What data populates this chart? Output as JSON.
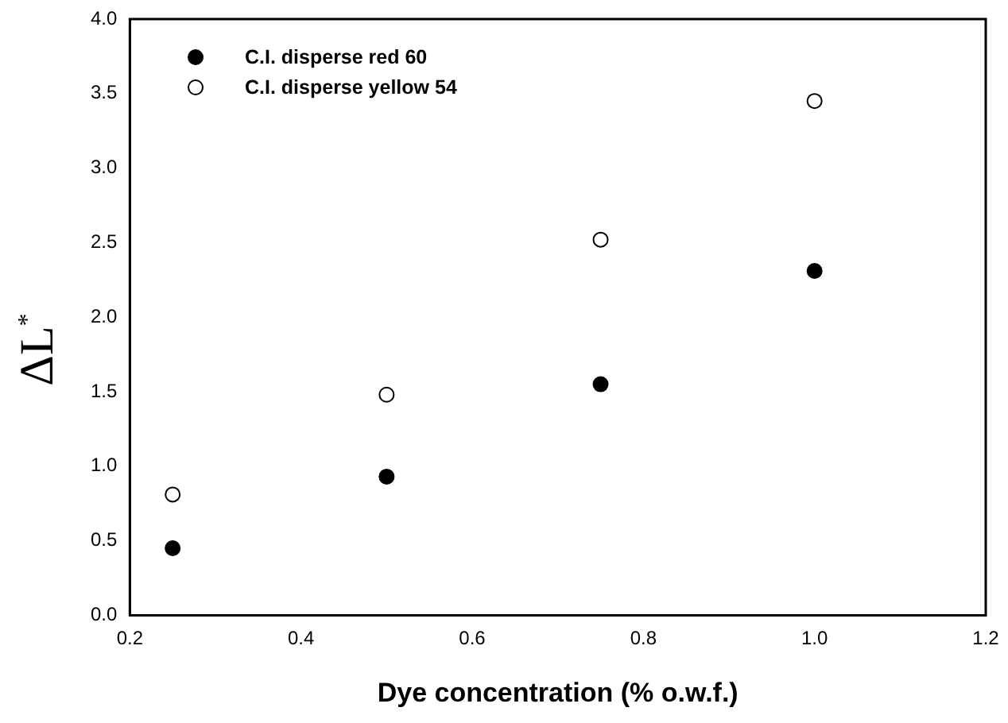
{
  "chart_data": {
    "type": "scatter",
    "xlabel": "Dye concentration (% o.w.f.)",
    "ylabel": "ΔL$^{*}$",
    "x": [
      0.25,
      0.5,
      0.75,
      1.0
    ],
    "series": [
      {
        "name": "C.I. disperse red 60",
        "color": "#000000",
        "values": [
          0.45,
          0.93,
          1.55,
          2.31
        ]
      },
      {
        "name": "C.I. disperse yellow 54",
        "color": "#ffffff",
        "values": [
          0.81,
          1.48,
          2.52,
          3.45
        ]
      }
    ],
    "xlim": [
      0.2,
      1.2
    ],
    "xticks": [
      0.2,
      0.4,
      0.6,
      0.8,
      {
        "value": 1,
        "label": "1.0"
      },
      1.2
    ],
    "ylim": [
      0,
      4
    ],
    "yticks": [
      {
        "value": 0,
        "label": "0.0"
      },
      0.5,
      {
        "value": 1,
        "label": "1.0"
      },
      1.5,
      {
        "value": 2,
        "label": "2.0"
      },
      2.5,
      {
        "value": 3,
        "label": "3.0"
      },
      3.5,
      {
        "value": 4,
        "label": "4.0"
      }
    ],
    "grid": false,
    "legend": "top left",
    "marker": "circle"
  }
}
